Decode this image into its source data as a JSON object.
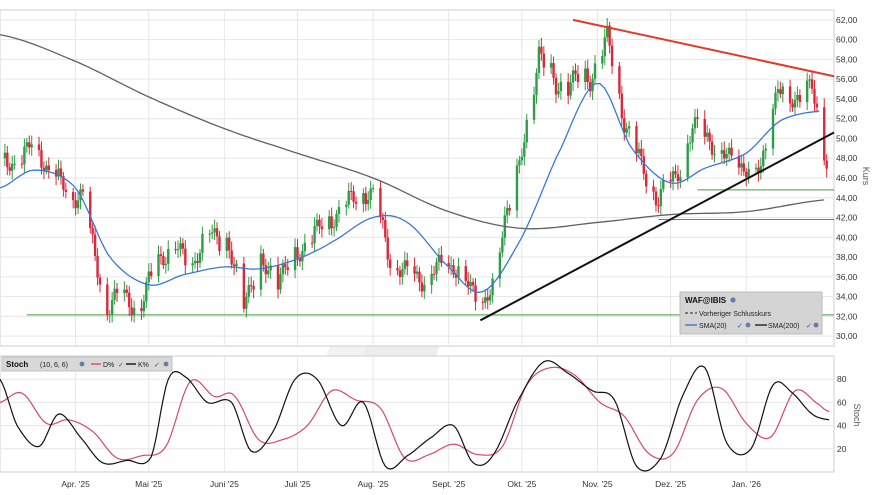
{
  "chart_data": [
    {
      "type": "candlestick",
      "panel": "price",
      "xlabel": "",
      "ylabel": "Kurs",
      "ylim": [
        29,
        63
      ],
      "y_ticks": [
        30,
        32,
        34,
        36,
        38,
        40,
        42,
        44,
        46,
        48,
        50,
        52,
        54,
        56,
        58,
        60,
        62
      ],
      "y_tick_labels": [
        "30,00",
        "32,00",
        "34,00",
        "36,00",
        "38,00",
        "40,00",
        "42,00",
        "44,00",
        "46,00",
        "48,00",
        "50,00",
        "52,00",
        "54,00",
        "56,00",
        "58,00",
        "60,00",
        "62,00"
      ],
      "x_range": [
        "2025-03-01",
        "2026-02-06"
      ],
      "x_ticks": [
        "2025-04-01",
        "2025-05-01",
        "2025-06-01",
        "2025-07-01",
        "2025-08-01",
        "2025-09-01",
        "2025-10-01",
        "2025-11-01",
        "2025-12-01",
        "2026-01-01"
      ],
      "x_tick_labels": [
        "Apr. '25",
        "Mai '25",
        "Juni '25",
        "Juli '25",
        "Aug. '25",
        "Sept. '25",
        "Okt. '25",
        "Nov. '25",
        "Dez. '25",
        "Jan. '26"
      ],
      "grid": true,
      "close_anchors": {
        "dates": [
          "2025-03-01",
          "2025-03-08",
          "2025-03-15",
          "2025-03-22",
          "2025-03-28",
          "2025-04-04",
          "2025-04-07",
          "2025-04-14",
          "2025-04-21",
          "2025-04-28",
          "2025-05-05",
          "2025-05-12",
          "2025-05-19",
          "2025-05-26",
          "2025-06-02",
          "2025-06-09",
          "2025-06-16",
          "2025-06-23",
          "2025-06-30",
          "2025-07-07",
          "2025-07-14",
          "2025-07-21",
          "2025-07-28",
          "2025-08-01",
          "2025-08-08",
          "2025-08-15",
          "2025-08-22",
          "2025-08-29",
          "2025-09-05",
          "2025-09-12",
          "2025-09-15",
          "2025-09-19",
          "2025-09-24",
          "2025-09-30",
          "2025-10-03",
          "2025-10-08",
          "2025-10-15",
          "2025-10-22",
          "2025-10-29",
          "2025-11-01",
          "2025-11-05",
          "2025-11-12",
          "2025-11-19",
          "2025-11-26",
          "2025-12-03",
          "2025-12-10",
          "2025-12-17",
          "2025-12-24",
          "2025-12-31",
          "2026-01-07",
          "2026-01-14",
          "2026-01-21",
          "2026-01-28",
          "2026-02-03"
        ],
        "values": [
          48,
          47,
          50,
          46,
          45,
          44,
          40,
          33,
          34,
          33,
          38,
          39,
          37,
          41,
          39,
          34,
          37,
          36,
          38,
          40,
          42,
          43,
          45,
          44,
          38,
          36,
          36,
          37,
          37,
          34,
          33,
          35,
          42,
          47,
          51,
          59,
          55,
          56,
          56,
          58,
          60,
          52,
          47,
          44,
          46,
          51,
          50,
          48,
          47,
          47,
          55,
          54,
          55,
          48
        ]
      },
      "series": [
        {
          "name": "SMA(20)",
          "color": "#3a78d8",
          "x": [
            "2025-03-01",
            "2025-03-15",
            "2025-04-01",
            "2025-04-15",
            "2025-05-01",
            "2025-05-15",
            "2025-06-01",
            "2025-06-15",
            "2025-07-01",
            "2025-07-15",
            "2025-08-01",
            "2025-08-15",
            "2025-09-01",
            "2025-09-15",
            "2025-10-01",
            "2025-10-15",
            "2025-11-01",
            "2025-11-15",
            "2025-12-01",
            "2025-12-15",
            "2026-01-01",
            "2026-01-15",
            "2026-02-01"
          ],
          "values": [
            45,
            46.8,
            45,
            38,
            35.2,
            36.2,
            37,
            36.8,
            37.8,
            39.5,
            42,
            41.5,
            37,
            34.5,
            40,
            48,
            55.6,
            49,
            45.5,
            47,
            48.5,
            51.8,
            52.8
          ]
        },
        {
          "name": "SMA(200)",
          "color": "#606060",
          "x": [
            "2025-03-01",
            "2025-04-01",
            "2025-05-01",
            "2025-06-01",
            "2025-07-01",
            "2025-08-01",
            "2025-09-01",
            "2025-10-01",
            "2025-11-01",
            "2025-12-01",
            "2026-01-01",
            "2026-02-03"
          ],
          "values": [
            60.5,
            57.8,
            54.2,
            51,
            48.5,
            46,
            42.6,
            40.9,
            41.5,
            42.3,
            42.6,
            43.8
          ]
        }
      ],
      "trendlines": [
        {
          "name": "resistance",
          "color": "#e03a28",
          "from": [
            "2025-10-22",
            62
          ],
          "to": [
            "2026-02-06",
            56.3
          ]
        },
        {
          "name": "support",
          "color": "#111111",
          "from": [
            "2025-09-14",
            31.6
          ],
          "to": [
            "2026-02-06",
            50.6
          ]
        }
      ],
      "horizontal_lines": [
        {
          "name": "support-32",
          "value": 32.15,
          "color": "#3aa03a",
          "from": "2025-03-12",
          "to": "2026-02-06"
        },
        {
          "name": "support-41.8",
          "value": 41.8,
          "color": "#3aa03a",
          "from": "2025-11-26",
          "to": "2026-02-06"
        },
        {
          "name": "support-44.8",
          "value": 44.8,
          "color": "#3aa03a",
          "from": "2025-12-12",
          "to": "2026-02-06"
        }
      ],
      "legend": {
        "placement": "bottom-right",
        "symbol": "WAF@IBIS",
        "items": [
          "Vorheriger Schlusskurs",
          "SMA(20)",
          "SMA(200)"
        ]
      }
    },
    {
      "type": "line",
      "panel": "stochastic",
      "title": "Stoch",
      "params": "(10, 6, 6)",
      "ylabel": "Stoch",
      "ylim": [
        0,
        100
      ],
      "y_ticks": [
        20,
        40,
        60,
        80
      ],
      "grid": true,
      "series": [
        {
          "name": "D%",
          "color": "#d44a6a",
          "x": [
            "2025-03-01",
            "2025-03-10",
            "2025-03-20",
            "2025-03-29",
            "2025-04-08",
            "2025-04-18",
            "2025-04-28",
            "2025-05-08",
            "2025-05-18",
            "2025-05-28",
            "2025-06-05",
            "2025-06-15",
            "2025-06-25",
            "2025-07-05",
            "2025-07-15",
            "2025-07-25",
            "2025-08-04",
            "2025-08-14",
            "2025-08-24",
            "2025-09-03",
            "2025-09-13",
            "2025-09-23",
            "2025-10-03",
            "2025-10-13",
            "2025-10-23",
            "2025-11-02",
            "2025-11-12",
            "2025-11-22",
            "2025-12-02",
            "2025-12-12",
            "2025-12-22",
            "2026-01-01",
            "2026-01-11",
            "2026-01-21",
            "2026-01-31",
            "2026-02-04"
          ],
          "values": [
            60,
            68,
            42,
            45,
            35,
            12,
            14,
            22,
            78,
            65,
            66,
            28,
            28,
            40,
            70,
            62,
            55,
            12,
            15,
            24,
            15,
            22,
            75,
            90,
            83,
            60,
            48,
            16,
            16,
            62,
            72,
            42,
            30,
            70,
            58,
            52
          ]
        },
        {
          "name": "K%",
          "color": "#111111",
          "x": [
            "2025-03-01",
            "2025-03-08",
            "2025-03-17",
            "2025-03-25",
            "2025-04-03",
            "2025-04-12",
            "2025-04-22",
            "2025-05-02",
            "2025-05-09",
            "2025-05-16",
            "2025-05-25",
            "2025-06-04",
            "2025-06-12",
            "2025-06-21",
            "2025-06-30",
            "2025-07-09",
            "2025-07-19",
            "2025-07-28",
            "2025-08-06",
            "2025-08-15",
            "2025-08-25",
            "2025-09-03",
            "2025-09-11",
            "2025-09-19",
            "2025-09-29",
            "2025-10-10",
            "2025-10-20",
            "2025-10-30",
            "2025-11-08",
            "2025-11-17",
            "2025-11-27",
            "2025-12-06",
            "2025-12-15",
            "2025-12-24",
            "2026-01-03",
            "2026-01-12",
            "2026-01-20",
            "2026-01-28",
            "2026-02-04"
          ],
          "values": [
            80,
            40,
            22,
            50,
            30,
            8,
            10,
            13,
            80,
            82,
            60,
            60,
            18,
            35,
            80,
            80,
            40,
            60,
            5,
            14,
            30,
            40,
            8,
            14,
            60,
            95,
            85,
            70,
            62,
            5,
            12,
            66,
            90,
            25,
            20,
            75,
            68,
            50,
            45
          ]
        }
      ]
    }
  ],
  "ui": {
    "legend_title": "WAF@IBIS",
    "legend_prev_close": "Vorheriger Schlusskurs",
    "legend_sma20": "SMA(20)",
    "legend_sma200": "SMA(200)",
    "stoch_title": "Stoch",
    "stoch_params": "(10, 6, 6)",
    "stoch_d": "D%",
    "stoch_k": "K%",
    "price_axis_label": "Kurs",
    "stoch_axis_label": "Stoch",
    "colors": {
      "up": "#2f9d47",
      "down": "#d8283a",
      "grid": "#e6e6e6",
      "frame": "#cfcfcf",
      "watermark": "#ececec"
    },
    "icons": {
      "legend_symbol": "info-icon",
      "legend_item": "check-icon"
    }
  }
}
